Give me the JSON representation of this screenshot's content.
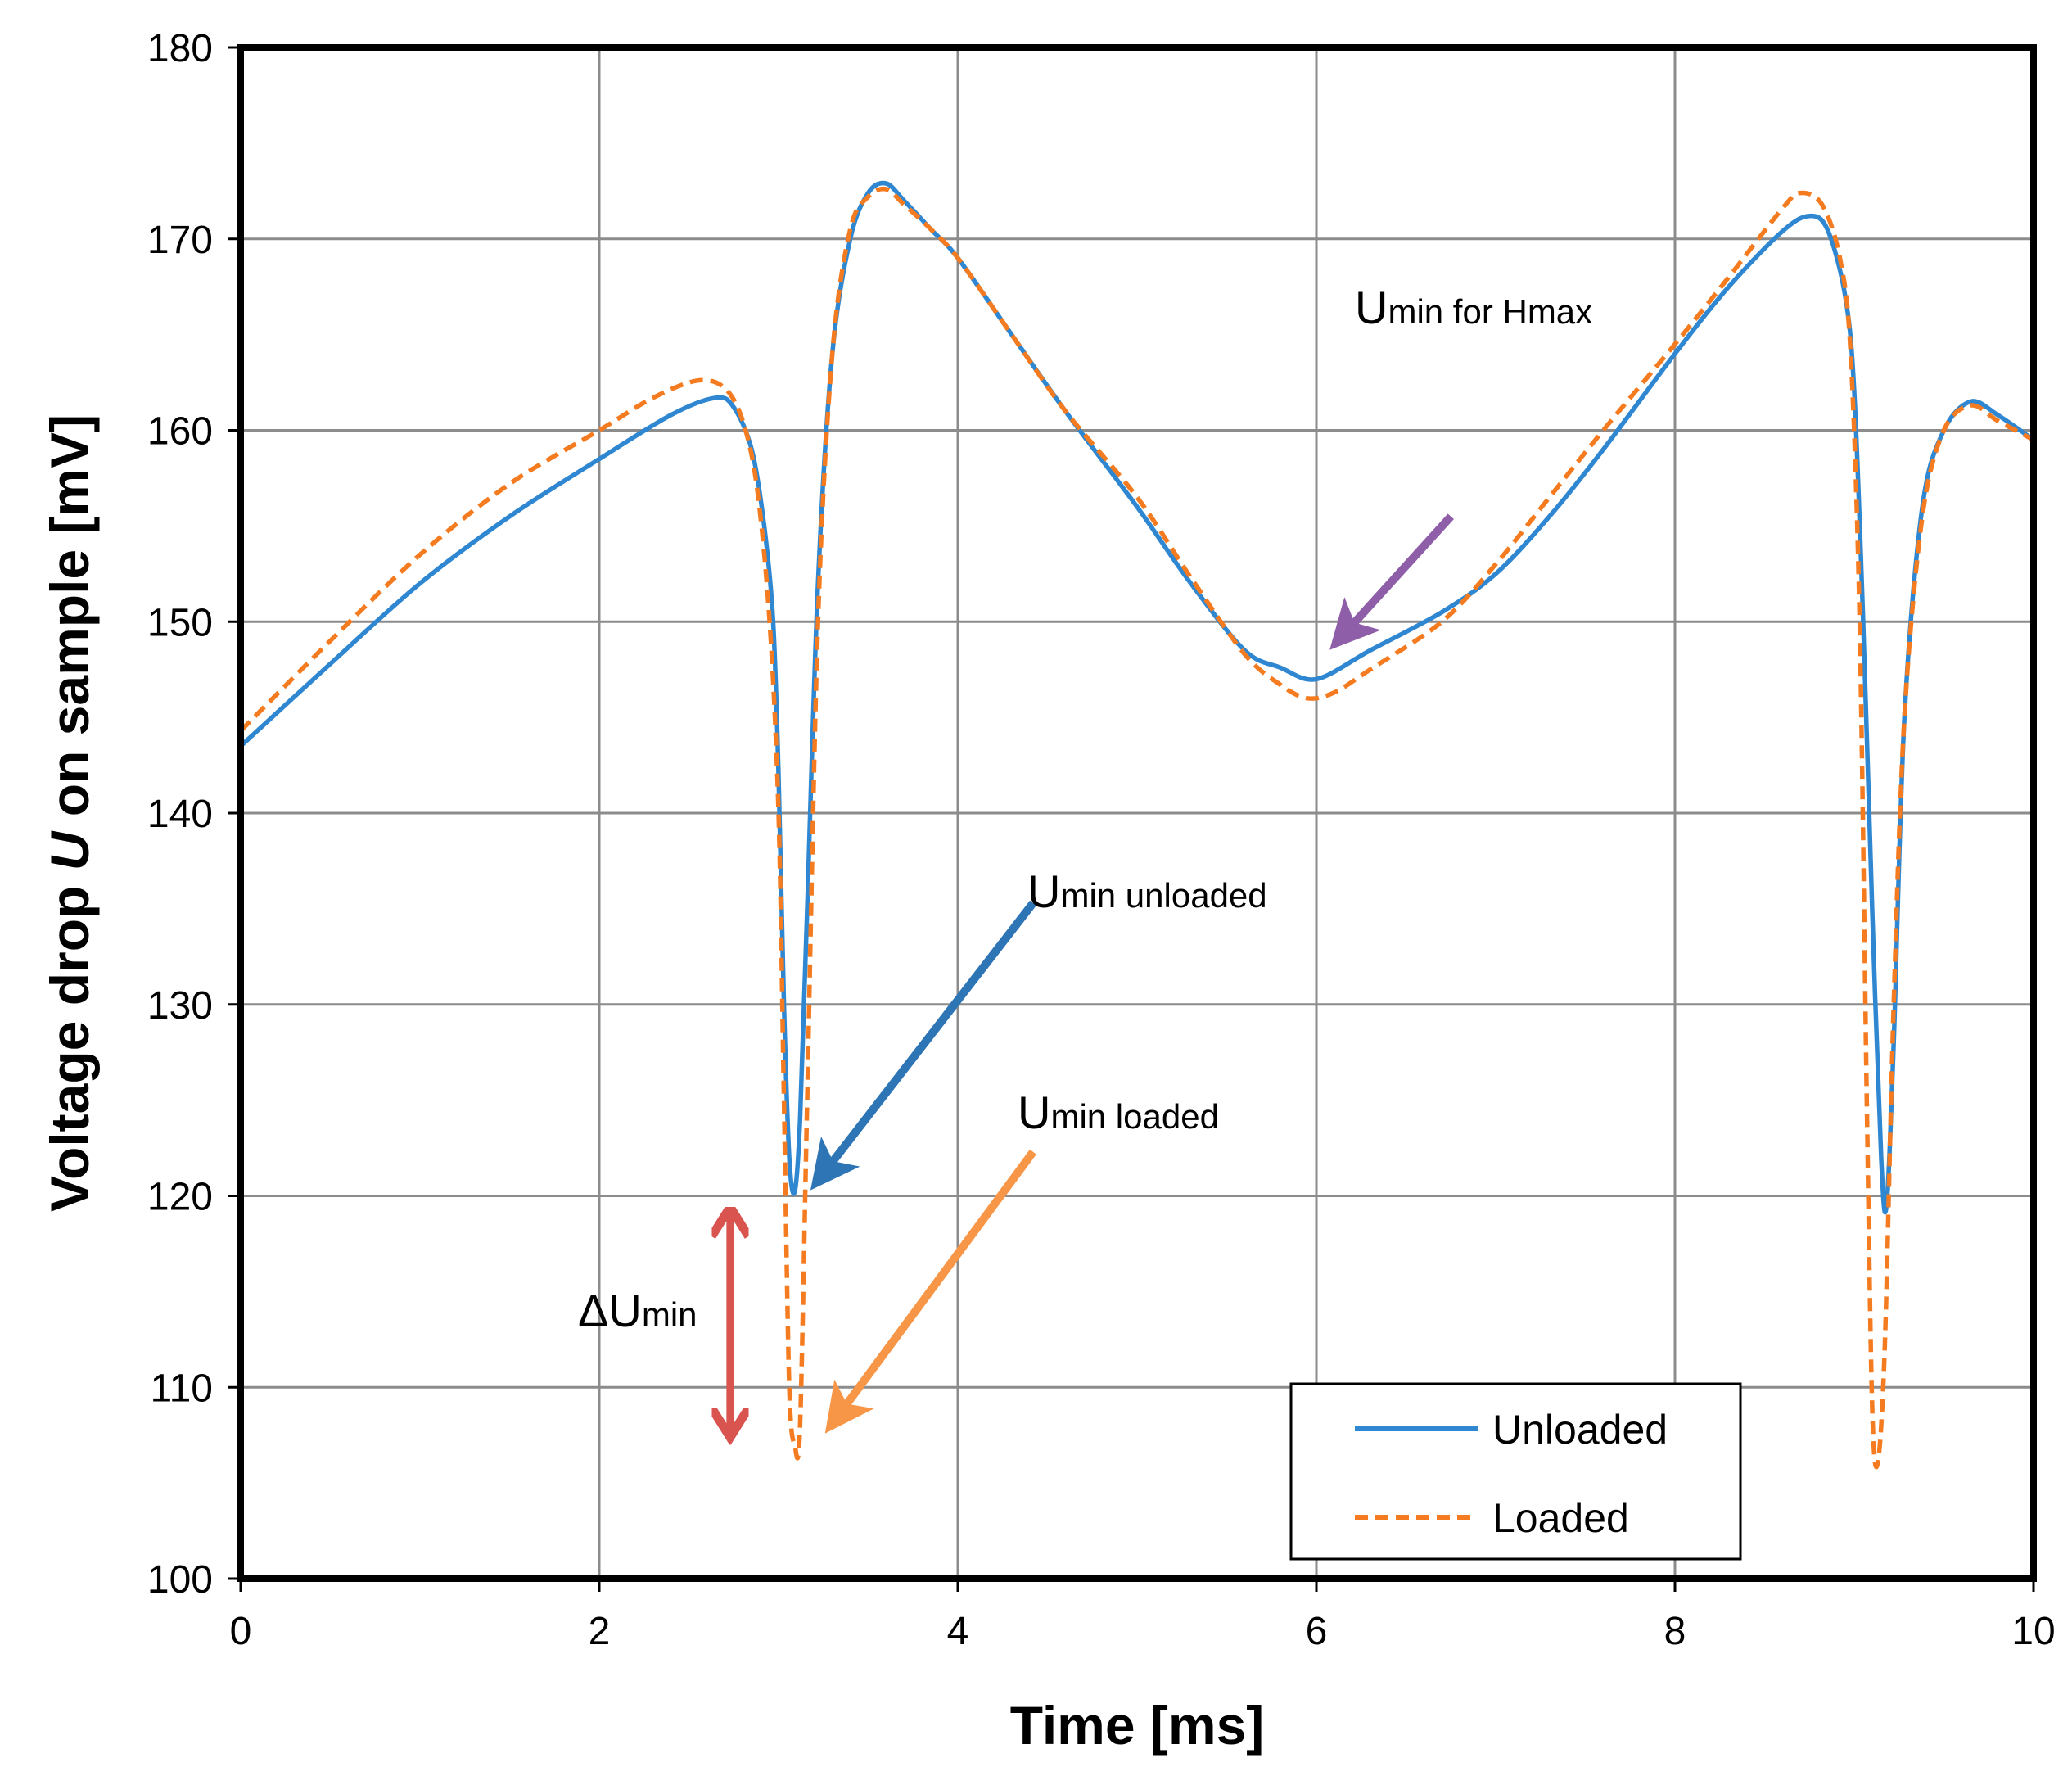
{
  "chart_data": {
    "type": "line",
    "title": "",
    "xlabel": "Time [ms]",
    "ylabel_parts": {
      "pre": "Voltage drop ",
      "var": "U",
      "post": " on sample [mV]"
    },
    "xlim": [
      0,
      10
    ],
    "ylim": [
      100,
      180
    ],
    "xticks": [
      0,
      2,
      4,
      6,
      8,
      10
    ],
    "yticks": [
      100,
      110,
      120,
      130,
      140,
      150,
      160,
      170,
      180
    ],
    "grid": true,
    "legend_position": "bottom-right",
    "series": [
      {
        "name": "Unloaded",
        "color": "#2E87D0",
        "dash": "solid",
        "points": [
          [
            0,
            143.5
          ],
          [
            0.5,
            147.8
          ],
          [
            1,
            152
          ],
          [
            1.5,
            155.5
          ],
          [
            2,
            158.5
          ],
          [
            2.4,
            160.8
          ],
          [
            2.65,
            161.7
          ],
          [
            2.75,
            161.2
          ],
          [
            2.85,
            159
          ],
          [
            2.92,
            155
          ],
          [
            2.97,
            150
          ],
          [
            3.0,
            142
          ],
          [
            3.03,
            130
          ],
          [
            3.06,
            122
          ],
          [
            3.09,
            120.2
          ],
          [
            3.12,
            124
          ],
          [
            3.16,
            135
          ],
          [
            3.22,
            152
          ],
          [
            3.3,
            164
          ],
          [
            3.4,
            170
          ],
          [
            3.5,
            172.4
          ],
          [
            3.6,
            172.9
          ],
          [
            3.7,
            172
          ],
          [
            3.85,
            170.5
          ],
          [
            4.0,
            169
          ],
          [
            4.3,
            165
          ],
          [
            4.6,
            161
          ],
          [
            5.0,
            156
          ],
          [
            5.3,
            152
          ],
          [
            5.6,
            148.5
          ],
          [
            5.8,
            147.6
          ],
          [
            6.0,
            147
          ],
          [
            6.3,
            148.5
          ],
          [
            6.7,
            150.5
          ],
          [
            7.0,
            152.5
          ],
          [
            7.3,
            155.5
          ],
          [
            7.6,
            159
          ],
          [
            8.0,
            164
          ],
          [
            8.3,
            167.5
          ],
          [
            8.6,
            170.4
          ],
          [
            8.75,
            171.2
          ],
          [
            8.85,
            170.5
          ],
          [
            8.95,
            167
          ],
          [
            9.0,
            162
          ],
          [
            9.05,
            150
          ],
          [
            9.1,
            135
          ],
          [
            9.15,
            122
          ],
          [
            9.18,
            119.5
          ],
          [
            9.22,
            128
          ],
          [
            9.28,
            145
          ],
          [
            9.38,
            156
          ],
          [
            9.5,
            160
          ],
          [
            9.65,
            161.5
          ],
          [
            9.8,
            160.8
          ],
          [
            10,
            159.5
          ]
        ]
      },
      {
        "name": "Loaded",
        "color": "#F47B20",
        "dash": "dashed",
        "points": [
          [
            0,
            144.3
          ],
          [
            0.5,
            149
          ],
          [
            1,
            153.5
          ],
          [
            1.5,
            157.2
          ],
          [
            2,
            160
          ],
          [
            2.3,
            161.7
          ],
          [
            2.55,
            162.6
          ],
          [
            2.7,
            162.2
          ],
          [
            2.8,
            160.5
          ],
          [
            2.88,
            157
          ],
          [
            2.95,
            150
          ],
          [
            3.0,
            140
          ],
          [
            3.03,
            125
          ],
          [
            3.06,
            110
          ],
          [
            3.09,
            107
          ],
          [
            3.12,
            108
          ],
          [
            3.16,
            125
          ],
          [
            3.22,
            150
          ],
          [
            3.3,
            164
          ],
          [
            3.4,
            170.5
          ],
          [
            3.5,
            172.2
          ],
          [
            3.6,
            172.6
          ],
          [
            3.7,
            171.8
          ],
          [
            3.85,
            170.5
          ],
          [
            4.0,
            169
          ],
          [
            4.3,
            165
          ],
          [
            4.6,
            161
          ],
          [
            5.0,
            156.5
          ],
          [
            5.3,
            152.3
          ],
          [
            5.6,
            148.3
          ],
          [
            5.8,
            146.7
          ],
          [
            5.95,
            146
          ],
          [
            6.1,
            146.3
          ],
          [
            6.3,
            147.5
          ],
          [
            6.7,
            150
          ],
          [
            7.0,
            153
          ],
          [
            7.3,
            156.5
          ],
          [
            7.6,
            160
          ],
          [
            8.0,
            164.5
          ],
          [
            8.3,
            168
          ],
          [
            8.6,
            171.6
          ],
          [
            8.7,
            172.4
          ],
          [
            8.82,
            171.8
          ],
          [
            8.92,
            169
          ],
          [
            8.98,
            164
          ],
          [
            9.03,
            150
          ],
          [
            9.07,
            125
          ],
          [
            9.1,
            109
          ],
          [
            9.13,
            106
          ],
          [
            9.17,
            112
          ],
          [
            9.22,
            130
          ],
          [
            9.28,
            145
          ],
          [
            9.38,
            155.5
          ],
          [
            9.5,
            160
          ],
          [
            9.65,
            161.3
          ],
          [
            9.8,
            160.5
          ],
          [
            10,
            159.5
          ]
        ]
      }
    ],
    "annotations": {
      "umin_hmax": {
        "main": "U",
        "sub": "min for H",
        "sub2": "max",
        "color": "#8E5FA8",
        "from": [
          6.75,
          155.5
        ],
        "to": [
          6.12,
          149
        ]
      },
      "umin_unloaded": {
        "main": "U",
        "sub": "min unloaded",
        "color": "#2E75B6",
        "from": [
          4.42,
          135.3
        ],
        "to": [
          3.22,
          120.8
        ]
      },
      "umin_loaded": {
        "main": "U",
        "sub": "min loaded",
        "color": "#F79646",
        "from": [
          4.42,
          122.3
        ],
        "to": [
          3.3,
          108.1
        ]
      },
      "delta_umin": {
        "delta": "Δ",
        "main": "U",
        "sub": "min",
        "color": "#D9534F",
        "x": 2.73,
        "y_top": 120,
        "y_bottom": 106.8
      }
    }
  }
}
